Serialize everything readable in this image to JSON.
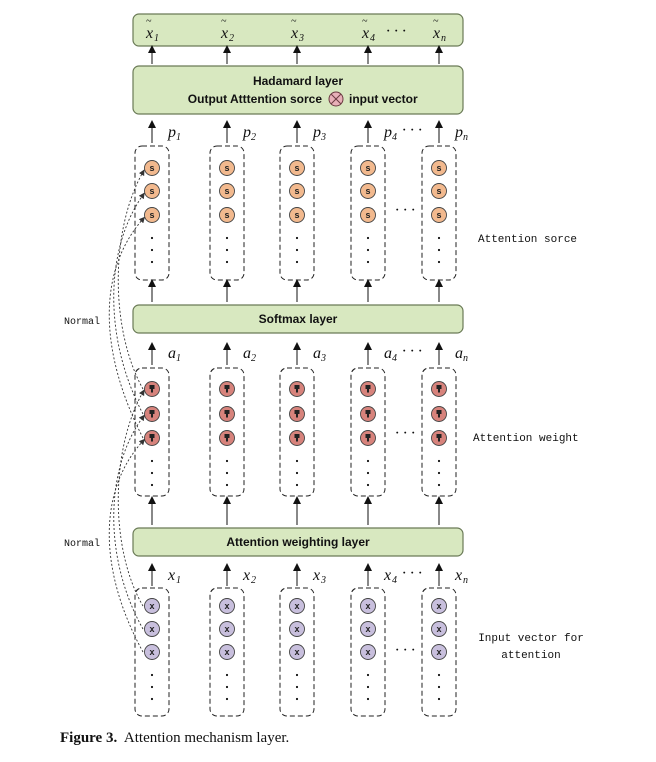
{
  "colors": {
    "layer_fill": "#d8e8c0",
    "layer_stroke": "#6a7a56",
    "score_node": "#f2b98e",
    "weight_node": "#d7837c",
    "input_node": "#c8bfdd",
    "hadamard_cross": "#e8b0b8"
  },
  "layers": {
    "output": {
      "vars": [
        "x",
        "x",
        "x",
        "x",
        "x"
      ],
      "subs": [
        "1",
        "2",
        "3",
        "4",
        "n"
      ],
      "dots": "· · ·"
    },
    "hadamard": {
      "title": "Hadamard layer",
      "line2_before": "Output  Atttention sorce",
      "line2_after": "input vector",
      "cross_icon": "otimes-icon"
    },
    "softmax": {
      "title": "Softmax layer"
    },
    "weighting": {
      "title": "Attention weighting layer"
    }
  },
  "scores": {
    "vars": [
      "p",
      "p",
      "p",
      "p",
      "p"
    ],
    "subs": [
      "1",
      "2",
      "3",
      "4",
      "n"
    ],
    "letter": "s",
    "dots": "· · ·"
  },
  "weights": {
    "vars": [
      "a",
      "a",
      "a",
      "a",
      "a"
    ],
    "subs": [
      "1",
      "2",
      "3",
      "4",
      "n"
    ],
    "dots": "· · ·"
  },
  "inputs": {
    "vars": [
      "x",
      "x",
      "x",
      "x",
      "x"
    ],
    "subs": [
      "1",
      "2",
      "3",
      "4",
      "n"
    ],
    "letter": "x",
    "dots": "· · ·"
  },
  "side_labels": {
    "attention_score": "Attention sorce",
    "attention_weight": "Attention weight",
    "input_vector_line1": "Input vector for",
    "input_vector_line2": "attention",
    "normal_upper": "Normal",
    "normal_lower": "Normal"
  },
  "caption": {
    "label": "Figure 3.",
    "text": "Attention mechanism layer."
  }
}
